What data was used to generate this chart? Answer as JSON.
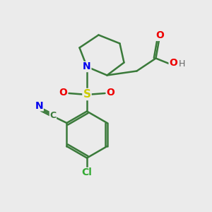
{
  "background_color": "#ebebeb",
  "atom_colors": {
    "C": "#3a7a3a",
    "N": "#0000ee",
    "O": "#ee0000",
    "S": "#cccc00",
    "Cl": "#33aa33",
    "H": "#666666"
  },
  "bond_color": "#3a7a3a",
  "figsize": [
    3.0,
    3.0
  ],
  "dpi": 100
}
